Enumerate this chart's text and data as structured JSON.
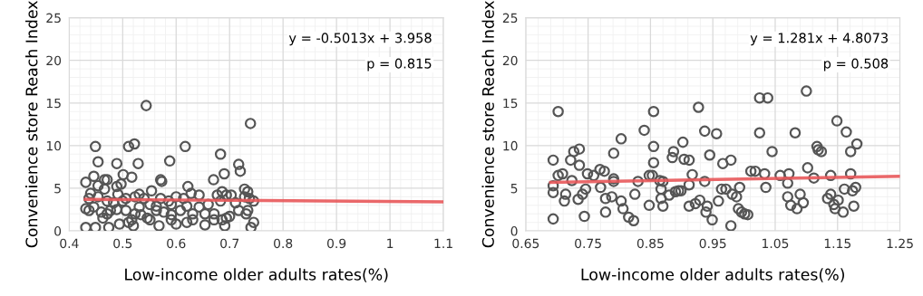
{
  "chart_data": [
    {
      "type": "scatter",
      "xlabel": "Low-income older adults rates(%)",
      "ylabel": "Convenience store Reach Index",
      "annotations": [
        "y = -0.5013x + 3.958",
        "p = 0.815"
      ],
      "xlim": [
        0.4,
        1.1
      ],
      "xticks": [
        0.4,
        0.5,
        0.6,
        0.7,
        0.8,
        0.9,
        1,
        1.1
      ],
      "ylim": [
        0,
        25
      ],
      "yticks": [
        0,
        5,
        10,
        15,
        20,
        25
      ],
      "grid": true,
      "series": [
        {
          "type": "scatter",
          "marker": "circle",
          "color": "#555555",
          "x": [
            0.431,
            0.449,
            0.474,
            0.494,
            0.511,
            0.52,
            0.568,
            0.6,
            0.62,
            0.654,
            0.691,
            0.74,
            0.745,
            0.449,
            0.511,
            0.522,
            0.617,
            0.544,
            0.739,
            0.683,
            0.454,
            0.489,
            0.529,
            0.588,
            0.717,
            0.72,
            0.501,
            0.517,
            0.446,
            0.431,
            0.466,
            0.471,
            0.571,
            0.573,
            0.67,
            0.69,
            0.622,
            0.554,
            0.734,
            0.489,
            0.497,
            0.454,
            0.431,
            0.437,
            0.446,
            0.46,
            0.471,
            0.477,
            0.489,
            0.506,
            0.523,
            0.534,
            0.546,
            0.563,
            0.577,
            0.591,
            0.608,
            0.631,
            0.643,
            0.654,
            0.671,
            0.686,
            0.7,
            0.717,
            0.731,
            0.745,
            0.437,
            0.454,
            0.471,
            0.491,
            0.506,
            0.523,
            0.531,
            0.54,
            0.571,
            0.586,
            0.6,
            0.614,
            0.628,
            0.643,
            0.677,
            0.686,
            0.694,
            0.703,
            0.711,
            0.728,
            0.737,
            0.44,
            0.466,
            0.483,
            0.5,
            0.551,
            0.563,
            0.591,
            0.62,
            0.66,
            0.683,
            0.728,
            0.734,
            0.591,
            0.631,
            0.671,
            0.694,
            0.517,
            0.551,
            0.463,
            0.531
          ],
          "values": [
            0.4,
            0.4,
            0.4,
            0.8,
            1.0,
            0.6,
            0.6,
            0.8,
            1.0,
            0.7,
            0.6,
            0.4,
            1.0,
            9.9,
            9.9,
            10.2,
            9.9,
            14.7,
            12.6,
            9.0,
            8.1,
            7.9,
            7.9,
            8.2,
            7.8,
            7.0,
            6.6,
            6.3,
            6.4,
            5.7,
            6.0,
            6.0,
            6.0,
            5.8,
            6.0,
            6.7,
            5.2,
            4.7,
            4.6,
            5.2,
            5.5,
            5.3,
            2.6,
            2.4,
            2.8,
            2.2,
            2.0,
            2.4,
            2.5,
            2.4,
            2.0,
            1.9,
            1.5,
            2.4,
            2.2,
            1.9,
            2.4,
            2.0,
            2.8,
            2.0,
            2.0,
            1.3,
            1.7,
            2.4,
            2.0,
            3.5,
            3.8,
            4.0,
            3.5,
            4.3,
            3.8,
            4.0,
            4.3,
            3.8,
            3.8,
            3.5,
            4.0,
            3.8,
            4.4,
            4.2,
            4.2,
            4.6,
            4.2,
            4.2,
            3.3,
            4.0,
            3.8,
            4.4,
            4.9,
            3.3,
            3.5,
            3.1,
            2.9,
            3.1,
            2.9,
            3.1,
            3.5,
            4.9,
            2.4,
            1.3,
            1.3,
            1.3,
            1.5,
            1.3,
            1.3,
            1.5,
            2.8
          ]
        },
        {
          "type": "line",
          "color": "#e8585a",
          "x": [
            0.43,
            1.1
          ],
          "values": [
            3.7,
            3.4
          ]
        }
      ]
    },
    {
      "type": "scatter",
      "xlabel": "Low-income older adults rates(%)",
      "ylabel": "Convenience store Reach Index",
      "annotations": [
        "y = 1.281x + 4.8073",
        "p = 0.508"
      ],
      "xlim": [
        0.65,
        1.25
      ],
      "xticks": [
        0.65,
        0.75,
        0.85,
        0.95,
        1.05,
        1.15,
        1.25
      ],
      "ylim": [
        0,
        25
      ],
      "yticks": [
        0,
        5,
        10,
        15,
        20,
        25
      ],
      "grid": true,
      "series": [
        {
          "type": "scatter",
          "marker": "circle",
          "color": "#555555",
          "x": [
            0.694,
            0.694,
            0.694,
            0.694,
            0.702,
            0.702,
            0.709,
            0.712,
            0.714,
            0.722,
            0.724,
            0.727,
            0.736,
            0.736,
            0.734,
            0.741,
            0.744,
            0.746,
            0.749,
            0.759,
            0.769,
            0.77,
            0.776,
            0.778,
            0.778,
            0.791,
            0.791,
            0.791,
            0.788,
            0.803,
            0.803,
            0.806,
            0.815,
            0.823,
            0.825,
            0.83,
            0.84,
            0.848,
            0.848,
            0.853,
            0.855,
            0.855,
            0.855,
            0.865,
            0.867,
            0.867,
            0.87,
            0.87,
            0.88,
            0.885,
            0.887,
            0.89,
            0.895,
            0.899,
            0.902,
            0.904,
            0.912,
            0.912,
            0.912,
            0.917,
            0.922,
            0.927,
            0.929,
            0.937,
            0.937,
            0.939,
            0.941,
            0.945,
            0.949,
            0.956,
            0.959,
            0.964,
            0.966,
            0.971,
            0.979,
            0.979,
            0.981,
            0.988,
            0.991,
            0.993,
            0.996,
            1.001,
            1.006,
            1.011,
            1.018,
            1.025,
            1.025,
            1.033,
            1.035,
            1.038,
            1.045,
            1.058,
            1.07,
            1.072,
            1.07,
            1.075,
            1.082,
            1.085,
            1.09,
            1.095,
            1.1,
            1.102,
            1.112,
            1.117,
            1.119,
            1.124,
            1.134,
            1.139,
            1.139,
            1.144,
            1.146,
            1.149,
            1.151,
            1.159,
            1.161,
            1.164,
            1.171,
            1.171,
            1.174,
            1.176,
            1.179,
            1.181
          ],
          "values": [
            8.3,
            5.3,
            4.5,
            1.4,
            14.0,
            6.5,
            6.7,
            3.5,
            4.3,
            8.3,
            5.9,
            9.3,
            9.6,
            7.7,
            3.7,
            4.3,
            1.7,
            4.9,
            6.7,
            6.5,
            7.2,
            5.1,
            7.0,
            2.2,
            3.8,
            9.1,
            6.1,
            5.8,
            4.0,
            10.8,
            3.5,
            2.6,
            1.6,
            1.2,
            4.3,
            5.8,
            11.8,
            3.0,
            6.5,
            6.5,
            14.0,
            9.9,
            8.0,
            5.9,
            4.9,
            3.8,
            2.9,
            5.8,
            4.2,
            8.6,
            9.3,
            4.6,
            4.7,
            4.7,
            10.4,
            8.4,
            8.3,
            5.4,
            2.9,
            6.6,
            3.2,
            14.5,
            3.6,
            11.7,
            5.8,
            2.2,
            2.9,
            8.9,
            1.3,
            11.4,
            3.5,
            4.9,
            7.9,
            4.9,
            0.6,
            8.3,
            4.3,
            4.0,
            2.6,
            5.1,
            2.2,
            2.0,
            1.9,
            7.0,
            7.0,
            15.6,
            11.5,
            6.7,
            5.1,
            15.6,
            9.3,
            6.5,
            5.6,
            6.7,
            4.0,
            3.0,
            11.5,
            2.6,
            4.3,
            3.3,
            16.4,
            7.4,
            6.2,
            9.9,
            9.5,
            9.3,
            3.8,
            6.5,
            4.3,
            3.1,
            2.6,
            12.9,
            3.6,
            2.2,
            4.9,
            11.6,
            9.3,
            6.7,
            4.7,
            2.9,
            5.1,
            10.2
          ]
        },
        {
          "type": "line",
          "color": "#e8585a",
          "x": [
            0.69,
            1.25
          ],
          "values": [
            5.7,
            6.4
          ]
        }
      ]
    }
  ]
}
